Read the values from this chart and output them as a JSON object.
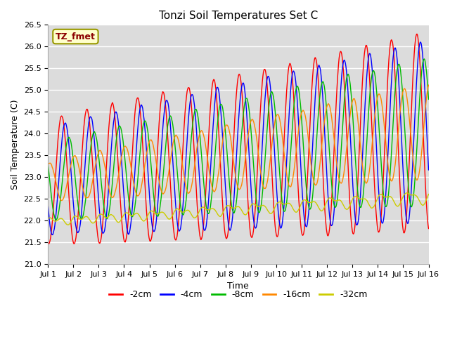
{
  "title": "Tonzi Soil Temperatures Set C",
  "xlabel": "Time",
  "ylabel": "Soil Temperature (C)",
  "ylim": [
    21.0,
    26.5
  ],
  "yticks": [
    21.0,
    21.5,
    22.0,
    22.5,
    23.0,
    23.5,
    24.0,
    24.5,
    25.0,
    25.5,
    26.0,
    26.5
  ],
  "xtick_labels": [
    "Jul 1",
    "Jul 2",
    "Jul 3",
    "Jul 4",
    "Jul 5",
    "Jul 6",
    "Jul 7",
    "Jul 8",
    "Jul 9",
    "Jul 10",
    "Jul 11",
    "Jul 12",
    "Jul 13",
    "Jul 14",
    "Jul 15",
    "Jul 16"
  ],
  "bg_color": "#dcdcdc",
  "legend_label": "TZ_fmet",
  "colors": {
    "-2cm": "#ff0000",
    "-4cm": "#0000ff",
    "-8cm": "#00bb00",
    "-16cm": "#ff8800",
    "-32cm": "#cccc00"
  },
  "n_points": 720,
  "days": 15
}
